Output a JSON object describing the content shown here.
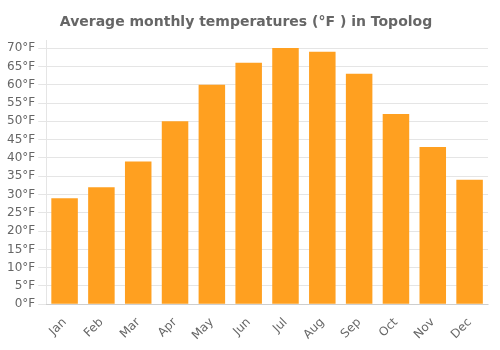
{
  "chart_data": {
    "type": "bar",
    "title": "Average monthly temperatures (°F ) in Topolog",
    "categories": [
      "Jan",
      "Feb",
      "Mar",
      "Apr",
      "May",
      "Jun",
      "Jul",
      "Aug",
      "Sep",
      "Oct",
      "Nov",
      "Dec"
    ],
    "values": [
      29,
      32,
      39,
      50,
      60,
      66,
      70,
      69,
      63,
      52,
      43,
      34
    ],
    "color": "#FFA020",
    "ylim": [
      0,
      72
    ],
    "yticks": [
      {
        "value": 0,
        "label": "0°F"
      },
      {
        "value": 5,
        "label": "5°F"
      },
      {
        "value": 10,
        "label": "10°F"
      },
      {
        "value": 15,
        "label": "15°F"
      },
      {
        "value": 20,
        "label": "20°F"
      },
      {
        "value": 25,
        "label": "25°F"
      },
      {
        "value": 30,
        "label": "30°F"
      },
      {
        "value": 35,
        "label": "35°F"
      },
      {
        "value": 40,
        "label": "40°F"
      },
      {
        "value": 45,
        "label": "45°F"
      },
      {
        "value": 50,
        "label": "50°F"
      },
      {
        "value": 55,
        "label": "55°F"
      },
      {
        "value": 60,
        "label": "60°F"
      },
      {
        "value": 65,
        "label": "65°F"
      },
      {
        "value": 70,
        "label": "70°F"
      }
    ],
    "grid": true
  }
}
